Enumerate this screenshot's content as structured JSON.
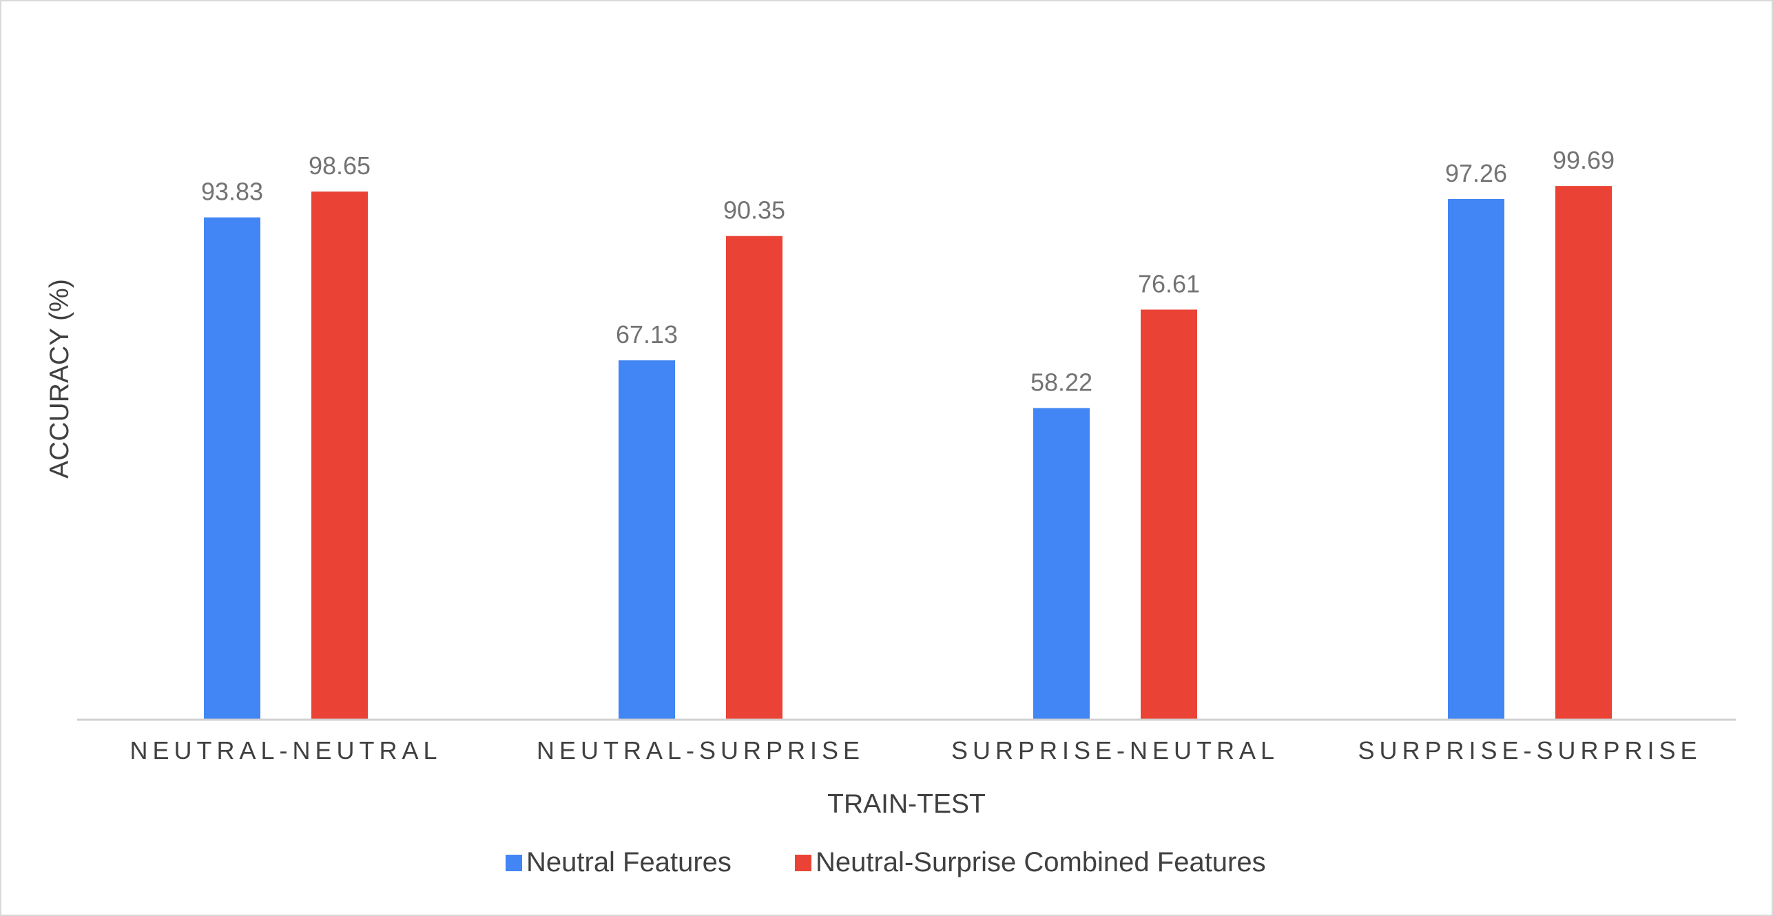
{
  "chart_data": {
    "type": "bar",
    "title": "",
    "xlabel": "TRAIN-TEST",
    "ylabel": "ACCURACY (%)",
    "ylim": [
      0,
      100
    ],
    "grid": false,
    "legend_position": "bottom",
    "categories": [
      "NEUTRAL-NEUTRAL",
      "NEUTRAL-SURPRISE",
      "SURPRISE-NEUTRAL",
      "SURPRISE-SURPRISE"
    ],
    "series": [
      {
        "name": "Neutral Features",
        "color": "#4285f4",
        "values": [
          93.83,
          67.13,
          58.22,
          97.26
        ]
      },
      {
        "name": "Neutral-Surprise Combined Features",
        "color": "#ea4335",
        "values": [
          98.65,
          90.35,
          76.61,
          99.69
        ]
      }
    ]
  }
}
